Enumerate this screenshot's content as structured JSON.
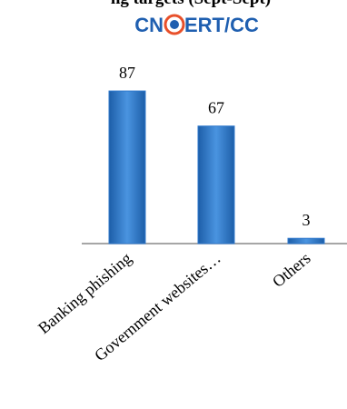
{
  "chart_data": {
    "type": "bar",
    "title": "ng targets (Sept-Sept)",
    "logo": [
      "CN",
      "ERT/CC"
    ],
    "categories": [
      "Banking phishing",
      "Government websites…",
      "Others"
    ],
    "values": [
      87,
      67,
      3
    ],
    "color": "#2f78cc",
    "ylim": [
      0,
      100
    ],
    "grid": false
  }
}
